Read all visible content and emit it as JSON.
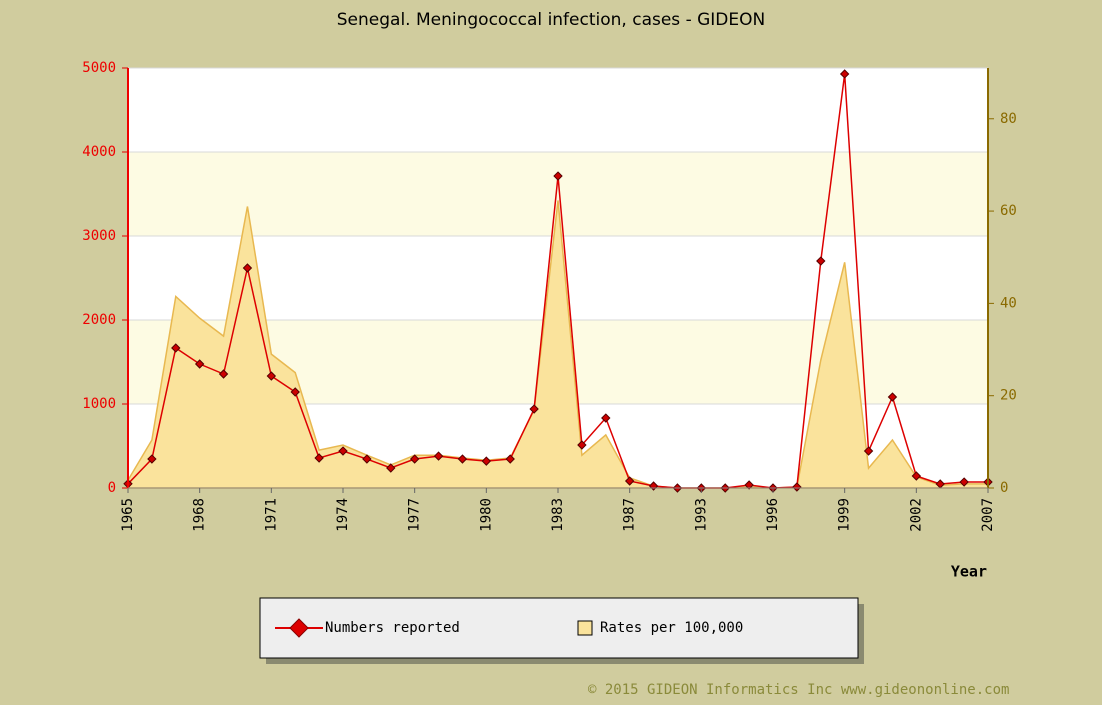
{
  "chart_data": {
    "type": "line",
    "title": "Senegal. Meningococcal infection, cases - GIDEON",
    "xlabel": "Year",
    "categories": [
      "1965",
      null,
      null,
      "1968",
      null,
      null,
      "1971",
      null,
      null,
      "1974",
      null,
      null,
      "1977",
      null,
      null,
      "1980",
      null,
      null,
      "1983",
      null,
      null,
      "1987",
      null,
      null,
      "1993",
      null,
      null,
      "1996",
      null,
      null,
      "1999",
      null,
      null,
      "2002",
      null,
      null,
      "2007"
    ],
    "series": [
      {
        "name": "Numbers reported",
        "type": "line",
        "color": "#dd0000",
        "axis": "y",
        "values": [
          50,
          345,
          1667,
          1476,
          1357,
          2619,
          1333,
          1143,
          357,
          440,
          345,
          238,
          345,
          380,
          345,
          320,
          345,
          940,
          3714,
          512,
          833,
          83,
          24,
          0,
          0,
          0,
          36,
          0,
          12,
          2702,
          4929,
          440,
          1083,
          143,
          48,
          71,
          71
        ]
      },
      {
        "name": "Rates per 100,000",
        "type": "area",
        "color": "#fae39c",
        "axis": "y2",
        "values": [
          1.7,
          10.4,
          41.5,
          36.8,
          32.9,
          61,
          29,
          25,
          8.2,
          9.3,
          7.1,
          5,
          7.1,
          7.1,
          6.5,
          6,
          6.5,
          16.9,
          62.3,
          7.1,
          11.5,
          2.2,
          0.4,
          0,
          0,
          0,
          0.2,
          0,
          0.2,
          27.7,
          48.9,
          4.3,
          10.4,
          2.4,
          0.6,
          0.9,
          0.9
        ]
      }
    ],
    "ylim": [
      0,
      5000
    ],
    "yticks": [
      0,
      1000,
      2000,
      3000,
      4000,
      5000
    ],
    "y2lim": [
      0,
      91
    ],
    "y2ticks": [
      0,
      20,
      40,
      60,
      80
    ],
    "grid": true,
    "legend": "bottom",
    "copyright": "© 2015 GIDEON Informatics Inc www.gideononline.com"
  }
}
